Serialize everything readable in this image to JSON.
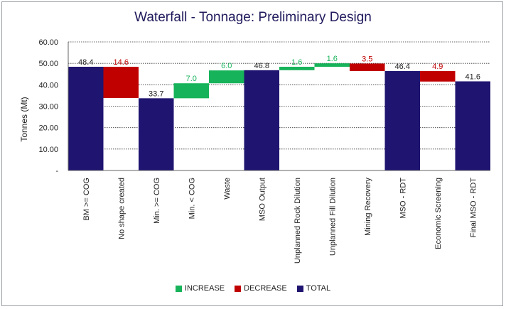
{
  "chart_data": {
    "type": "bar",
    "subtype": "waterfall",
    "title": "Waterfall - Tonnage: Preliminary Design",
    "xlabel": "",
    "ylabel": "Tonnes (Mt)",
    "ylim": [
      0,
      60
    ],
    "yticks": [
      0,
      10,
      20,
      30,
      40,
      50,
      60
    ],
    "ytick_labels": [
      "-",
      "10.00",
      "20.00",
      "30.00",
      "40.00",
      "50.00",
      "60.00"
    ],
    "grid": true,
    "legend_position": "bottom",
    "categories": [
      "BM >= COG",
      "No shape created",
      "Min. >= COG",
      "Min. < COG",
      "Waste",
      "MSO Output",
      "Unplanned Rock Dilution",
      "Unplanned Fill Dilution",
      "Mining Recovery",
      "MSO - RDT",
      "Economic Screening",
      "Final MSO - RDT"
    ],
    "bars": [
      {
        "kind": "total",
        "start": 0,
        "end": 48.4,
        "label": "48.4"
      },
      {
        "kind": "decrease",
        "start": 48.4,
        "end": 33.8,
        "label": "14.6"
      },
      {
        "kind": "total",
        "start": 0,
        "end": 33.7,
        "label": "33.7"
      },
      {
        "kind": "increase",
        "start": 33.7,
        "end": 40.7,
        "label": "7.0"
      },
      {
        "kind": "increase",
        "start": 40.7,
        "end": 46.7,
        "label": "6.0"
      },
      {
        "kind": "total",
        "start": 0,
        "end": 46.8,
        "label": "46.8"
      },
      {
        "kind": "increase",
        "start": 46.8,
        "end": 48.4,
        "label": "1.6"
      },
      {
        "kind": "increase",
        "start": 48.4,
        "end": 50.0,
        "label": "1.6"
      },
      {
        "kind": "decrease",
        "start": 49.9,
        "end": 46.4,
        "label": "3.5"
      },
      {
        "kind": "total",
        "start": 0,
        "end": 46.4,
        "label": "46.4"
      },
      {
        "kind": "decrease",
        "start": 46.4,
        "end": 41.5,
        "label": "4.9"
      },
      {
        "kind": "total",
        "start": 0,
        "end": 41.6,
        "label": "41.6"
      }
    ],
    "legend": [
      {
        "kind": "increase",
        "label": "INCREASE"
      },
      {
        "kind": "decrease",
        "label": "DECREASE"
      },
      {
        "kind": "total",
        "label": "TOTAL"
      }
    ],
    "colors": {
      "increase": "#17b35a",
      "decrease": "#c00000",
      "total": "#1f1470",
      "increase_text": "#17b35a",
      "decrease_text": "#c00000",
      "total_text": "#222222"
    }
  }
}
